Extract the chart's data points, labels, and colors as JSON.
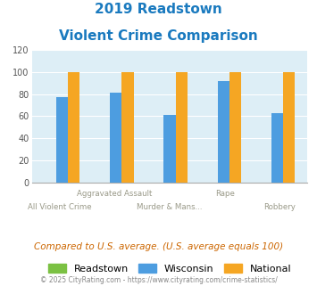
{
  "title_line1": "2019 Readstown",
  "title_line2": "Violent Crime Comparison",
  "categories": [
    "All Violent Crime",
    "Aggravated Assault",
    "Murder & Mans...",
    "Rape",
    "Robbery"
  ],
  "categories_line1": [
    "",
    "Aggravated Assault",
    "",
    "Rape",
    ""
  ],
  "categories_line2": [
    "All Violent Crime",
    "",
    "Murder & Mans...",
    "",
    "Robbery"
  ],
  "readstown": [
    0,
    0,
    0,
    0,
    0
  ],
  "wisconsin": [
    77,
    81,
    61,
    92,
    63
  ],
  "national": [
    100,
    100,
    100,
    100,
    100
  ],
  "readstown_color": "#7bc143",
  "wisconsin_color": "#4d9de0",
  "national_color": "#f5a623",
  "title_color": "#1a7abf",
  "bg_color": "#ddeef6",
  "ylim": [
    0,
    120
  ],
  "yticks": [
    0,
    20,
    40,
    60,
    80,
    100,
    120
  ],
  "footer_text": "Compared to U.S. average. (U.S. average equals 100)",
  "copyright_text": "© 2025 CityRating.com - https://www.cityrating.com/crime-statistics/",
  "footer_color": "#cc6600",
  "copyright_color": "#888888",
  "legend_labels": [
    "Readstown",
    "Wisconsin",
    "National"
  ]
}
